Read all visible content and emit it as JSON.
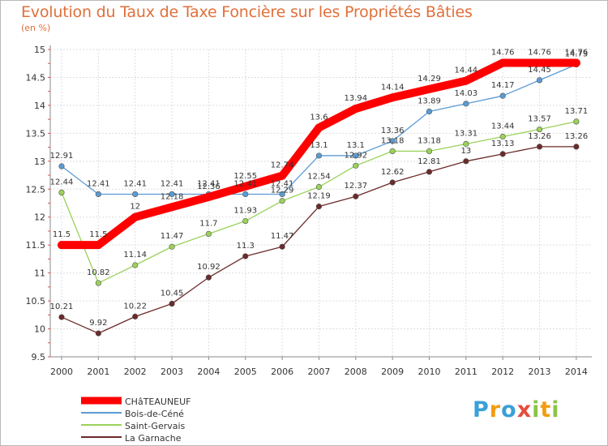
{
  "title": "Evolution du Taux de Taxe Foncière sur les Propriétés Bâties",
  "subtitle": "(en %)",
  "logo": {
    "letters": [
      "P",
      "r",
      "o",
      "x",
      "i",
      "t",
      "i"
    ],
    "colors": [
      "#3aa0d8",
      "#f39c12",
      "#3aa0d8",
      "#e74c3c",
      "#8bc34a",
      "#f39c12",
      "#8bc34a"
    ]
  },
  "chart_data": {
    "type": "line",
    "x": [
      "2000",
      "2001",
      "2002",
      "2003",
      "2004",
      "2005",
      "2006",
      "2007",
      "2008",
      "2009",
      "2010",
      "2011",
      "2012",
      "2013",
      "2014"
    ],
    "ylim": [
      9.5,
      15
    ],
    "yticks": [
      "9.5",
      "10",
      "10.5",
      "11",
      "11.5",
      "12",
      "12.5",
      "13",
      "13.5",
      "14",
      "14.5",
      "15"
    ],
    "grid": true,
    "legend_position": "bottom-left",
    "series": [
      {
        "name": "CHâTEAUNEUF",
        "color": "#ff0000",
        "values": [
          11.5,
          11.5,
          12,
          12.18,
          12.36,
          12.55,
          12.74,
          13.6,
          13.94,
          14.14,
          14.29,
          14.44,
          14.76,
          14.76,
          14.76
        ],
        "labels": [
          "11.5",
          "11.5",
          "12",
          "12.18",
          "12.36",
          "12.55",
          "12.74",
          "13.6",
          "13.94",
          "14.14",
          "14.29",
          "14.44",
          "14.76",
          "14.76",
          "14.76"
        ]
      },
      {
        "name": "Bois-de-Céné",
        "color": "#5b9bd5",
        "values": [
          12.91,
          12.41,
          12.41,
          12.41,
          12.41,
          12.41,
          12.41,
          13.1,
          13.1,
          13.36,
          13.89,
          14.03,
          14.17,
          14.45,
          14.73
        ],
        "labels": [
          "12.91",
          "12.41",
          "12.41",
          "12.41",
          "12.41",
          "12.41",
          "12.41",
          "13.1",
          "13.1",
          "13.36",
          "13.89",
          "14.03",
          "14.17",
          "14.45",
          "14.73"
        ]
      },
      {
        "name": "Saint-Gervais",
        "color": "#9ad25a",
        "values": [
          12.44,
          10.82,
          11.14,
          11.47,
          11.7,
          11.93,
          12.29,
          12.54,
          12.92,
          13.18,
          13.18,
          13.31,
          13.44,
          13.57,
          13.71
        ],
        "labels": [
          "12.44",
          "10.82",
          "11.14",
          "11.47",
          "11.7",
          "11.93",
          "12.29",
          "12.54",
          "12.92",
          "13.18",
          "13.18",
          "13.31",
          "13.44",
          "13.57",
          "13.71"
        ]
      },
      {
        "name": "La Garnache",
        "color": "#6b2a2a",
        "values": [
          10.21,
          9.92,
          10.22,
          10.45,
          10.92,
          11.3,
          11.47,
          12.19,
          12.37,
          12.62,
          12.81,
          13,
          13.13,
          13.26,
          13.26
        ],
        "labels": [
          "10.21",
          "9.92",
          "10.22",
          "10.45",
          "10.92",
          "11.3",
          "11.47",
          "12.19",
          "12.37",
          "12.62",
          "12.81",
          "13",
          "13.13",
          "13.26",
          "13.26"
        ]
      }
    ]
  }
}
